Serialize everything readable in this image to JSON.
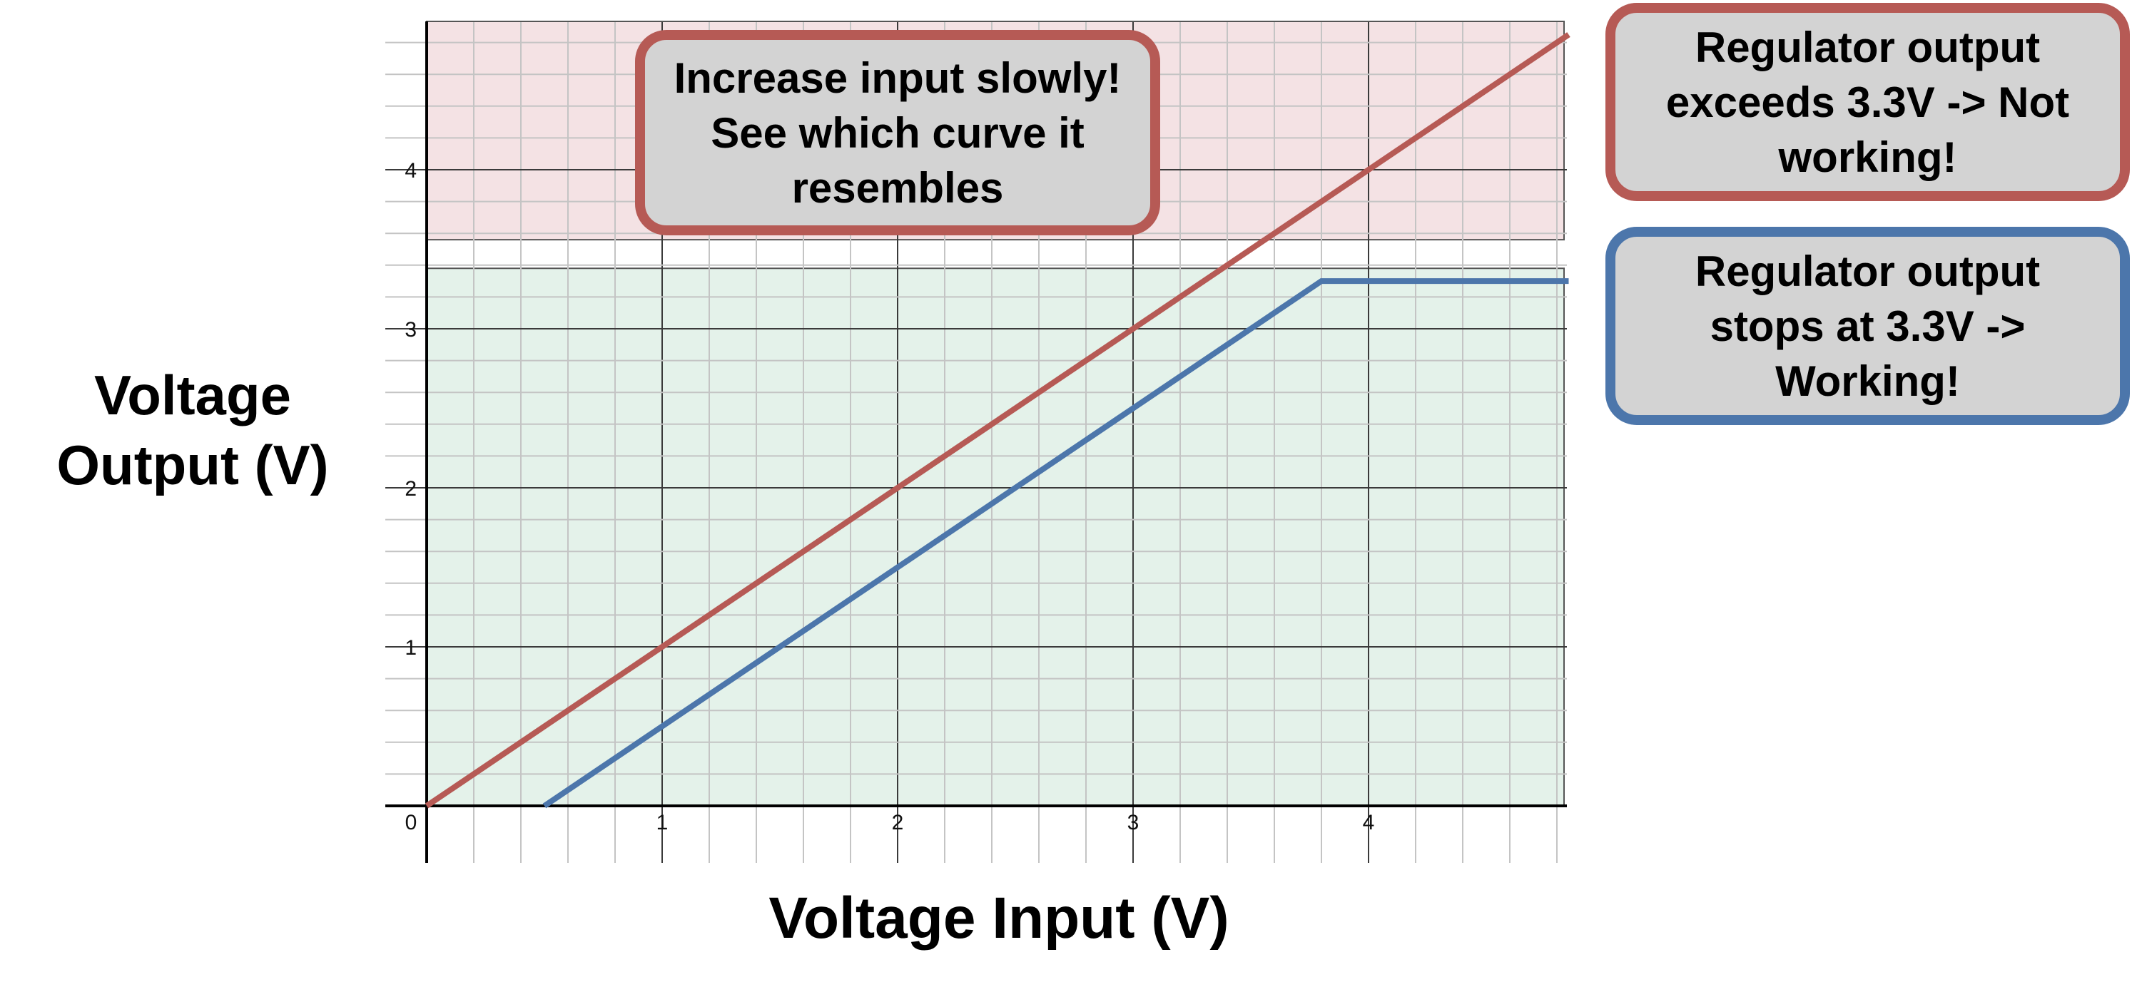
{
  "chart_data": {
    "type": "line",
    "title": "",
    "xlabel": "Voltage Input (V)",
    "ylabel": "Voltage Output (V)",
    "xlim": [
      0,
      4.85
    ],
    "ylim": [
      0,
      4.95
    ],
    "x_ticks": [
      "0",
      "1",
      "2",
      "3",
      "4"
    ],
    "y_ticks": [
      "1",
      "2",
      "3",
      "4"
    ],
    "grid": true,
    "legend": "none",
    "regions": [
      {
        "label": "",
        "y_range": [
          3.56,
          4.95
        ],
        "color": "#f4e2e4"
      },
      {
        "label": "",
        "y_range": [
          0,
          3.38
        ],
        "color": "#e4f2ea"
      }
    ],
    "series": [
      {
        "name": "",
        "color": "#b65a55",
        "points": [
          [
            0,
            0
          ],
          [
            4.85,
            4.85
          ]
        ]
      },
      {
        "name": "",
        "color": "#4c76ab",
        "points": [
          [
            0.5,
            0
          ],
          [
            3.8,
            3.3
          ],
          [
            4.85,
            3.3
          ]
        ]
      }
    ]
  },
  "annotations": {
    "center": "Increase input slowly! See which curve it resembles",
    "red": "Regulator output exceeds 3.3V -> Not working!",
    "blue": "Regulator output stops at 3.3V -> Working!"
  }
}
